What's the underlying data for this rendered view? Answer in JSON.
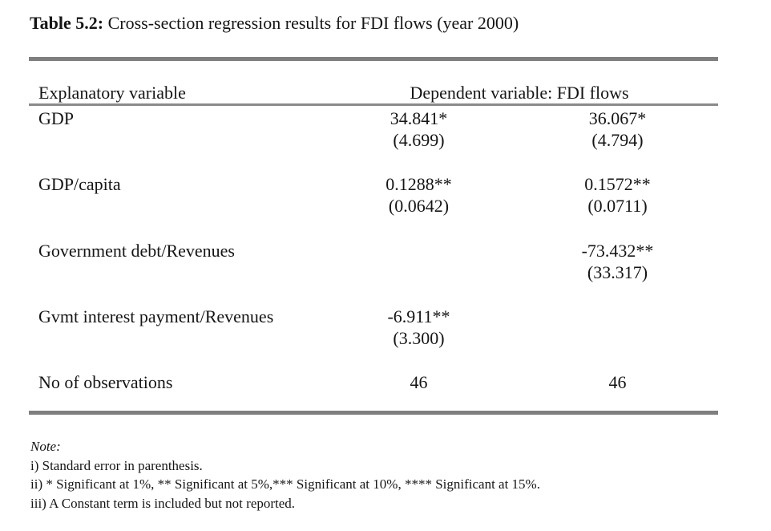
{
  "title": {
    "number": "Table 5.2:",
    "text": " Cross-section regression results for FDI flows (year 2000)"
  },
  "table": {
    "header": {
      "explanatory": "Explanatory variable",
      "dependent": "Dependent variable: FDI flows"
    },
    "rows": [
      {
        "label": "GDP",
        "m1": {
          "value": "34.841*",
          "se": "(4.699)"
        },
        "m2": {
          "value": "36.067*",
          "se": "(4.794)"
        }
      },
      {
        "label": "GDP/capita",
        "m1": {
          "value": "0.1288**",
          "se": "(0.0642)"
        },
        "m2": {
          "value": "0.1572**",
          "se": "(0.0711)"
        }
      },
      {
        "label": "Government debt/Revenues",
        "m1": {
          "value": "",
          "se": ""
        },
        "m2": {
          "value": "-73.432**",
          "se": "(33.317)"
        }
      },
      {
        "label": "Gvmt interest payment/Revenues",
        "m1": {
          "value": "-6.911**",
          "se": "(3.300)"
        },
        "m2": {
          "value": "",
          "se": ""
        }
      },
      {
        "label": "No of observations",
        "m1": {
          "value": "46",
          "se": ""
        },
        "m2": {
          "value": "46",
          "se": ""
        }
      }
    ]
  },
  "notes": {
    "heading": "Note:",
    "items": [
      "i) Standard error in parenthesis.",
      "ii) * Significant at 1%, ** Significant at 5%,*** Significant at 10%, **** Significant at 15%.",
      "iii) A Constant term is included but not reported."
    ]
  },
  "colors": {
    "rule": "#7f7f7f",
    "text": "#151515",
    "background": "#ffffff"
  }
}
